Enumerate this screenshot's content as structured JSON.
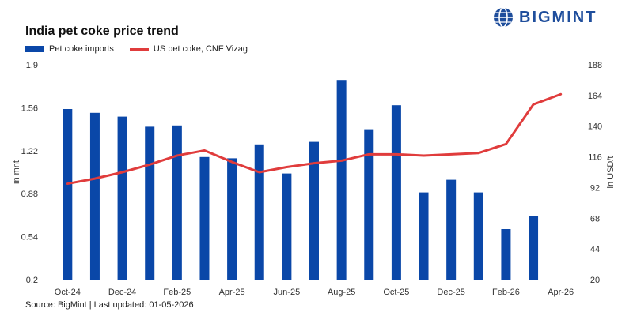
{
  "title": "India pet coke price trend",
  "logo_text": "BIGMINT",
  "source": "Source: BigMint | Last updated: 01-05-2026",
  "colors": {
    "bar": "#0a47a8",
    "line": "#e03c3c",
    "logo": "#1f4e9c"
  },
  "chart_data": {
    "type": "bar",
    "title": "India pet coke price trend",
    "categories": [
      "Oct-24",
      "Nov-24",
      "Dec-24",
      "Jan-25",
      "Feb-25",
      "Mar-25",
      "Apr-25",
      "May-25",
      "Jun-25",
      "Jul-25",
      "Aug-25",
      "Sep-25",
      "Oct-25",
      "Nov-25",
      "Dec-25",
      "Jan-26",
      "Feb-26",
      "Mar-26",
      "Apr-26"
    ],
    "tick_labels": [
      "Oct-24",
      "Dec-24",
      "Feb-25",
      "Apr-25",
      "Jun-25",
      "Aug-25",
      "Oct-25",
      "Dec-25",
      "Feb-26",
      "Apr-26"
    ],
    "series": [
      {
        "name": "Pet coke imports",
        "type": "bar",
        "axis": "left",
        "values": [
          1.55,
          1.52,
          1.49,
          1.41,
          1.42,
          1.17,
          1.16,
          1.27,
          1.04,
          1.29,
          1.78,
          1.39,
          1.58,
          0.89,
          0.99,
          0.89,
          0.6,
          0.7,
          null
        ]
      },
      {
        "name": "US pet coke, CNF Vizag",
        "type": "line",
        "axis": "right",
        "values": [
          95,
          99,
          104,
          110,
          117,
          121,
          112,
          104,
          108,
          111,
          113,
          118,
          118,
          117,
          118,
          119,
          126,
          157,
          165
        ]
      }
    ],
    "ylabel": "in mnt",
    "y2label": "in USD/t",
    "ylim": [
      0.2,
      1.9
    ],
    "yticks": [
      "0.2",
      "0.54",
      "0.88",
      "1.22",
      "1.56",
      "1.9"
    ],
    "y2lim": [
      20,
      188
    ],
    "y2ticks": [
      "20",
      "44",
      "68",
      "92",
      "116",
      "140",
      "164",
      "188"
    ],
    "legend": "top-left",
    "grid": false
  }
}
